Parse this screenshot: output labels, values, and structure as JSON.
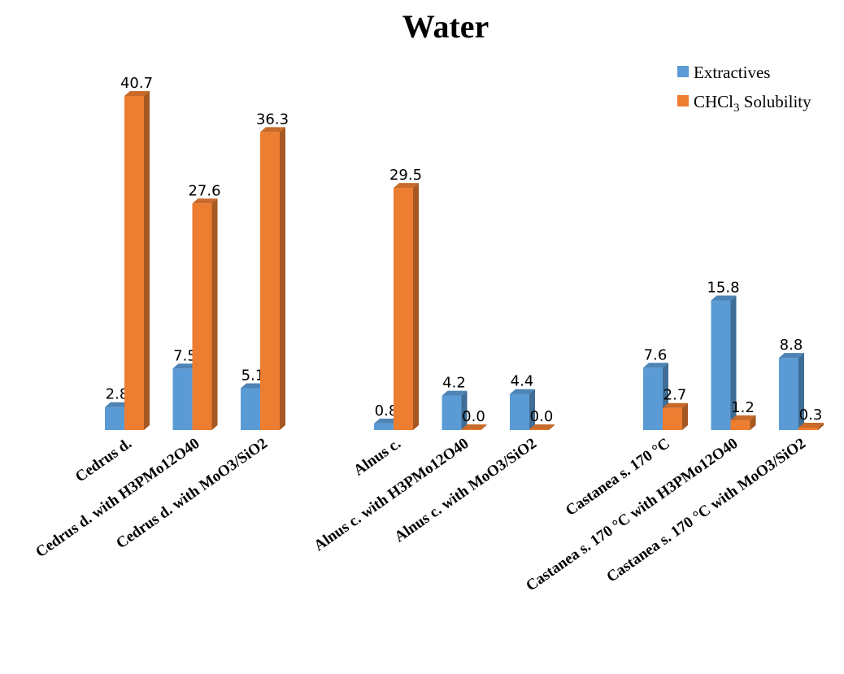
{
  "chart_data": {
    "type": "bar",
    "title": "Water",
    "categories": [
      "Cedrus d.",
      "Cedrus d. with H3PMo12O40",
      "Cedrus d. with MoO3/SiO2",
      "Alnus c.",
      "Alnus c. with H3PMo12O40",
      "Alnus c. with MoO3/SiO2",
      "Castanea s. 170 °C",
      "Castanea s. 170 °C with H3PMo12O40",
      "Castanea s. 170 °C with MoO3/SiO2"
    ],
    "groups": [
      {
        "categories": [
          0,
          1,
          2
        ]
      },
      {
        "categories": [
          3,
          4,
          5
        ]
      },
      {
        "categories": [
          6,
          7,
          8
        ]
      }
    ],
    "series": [
      {
        "name": "Extractives",
        "color": "#5B9BD5",
        "values": [
          2.8,
          7.5,
          5.1,
          0.8,
          4.2,
          4.4,
          7.6,
          15.8,
          8.8
        ]
      },
      {
        "name": "CHCl3 Solubility",
        "name_parts": [
          "CHCl",
          "3",
          " Solubility"
        ],
        "color": "#ED7D31",
        "values": [
          40.7,
          27.6,
          36.3,
          29.5,
          0.0,
          0.0,
          2.7,
          1.2,
          0.3
        ]
      }
    ],
    "data_labels": [
      [
        "2.8",
        "7.5",
        "5.1",
        "0.8",
        "4.2",
        "4.4",
        "7.6",
        "15.8",
        "8.8"
      ],
      [
        "40.7",
        "27.6",
        "36.3",
        "29.5",
        "0.0",
        "0.0",
        "2.7",
        "1.2",
        "0.3"
      ]
    ],
    "style": "3d-clustered-bar",
    "axes_visible": false,
    "grid": false,
    "legend_position": "top-right"
  }
}
